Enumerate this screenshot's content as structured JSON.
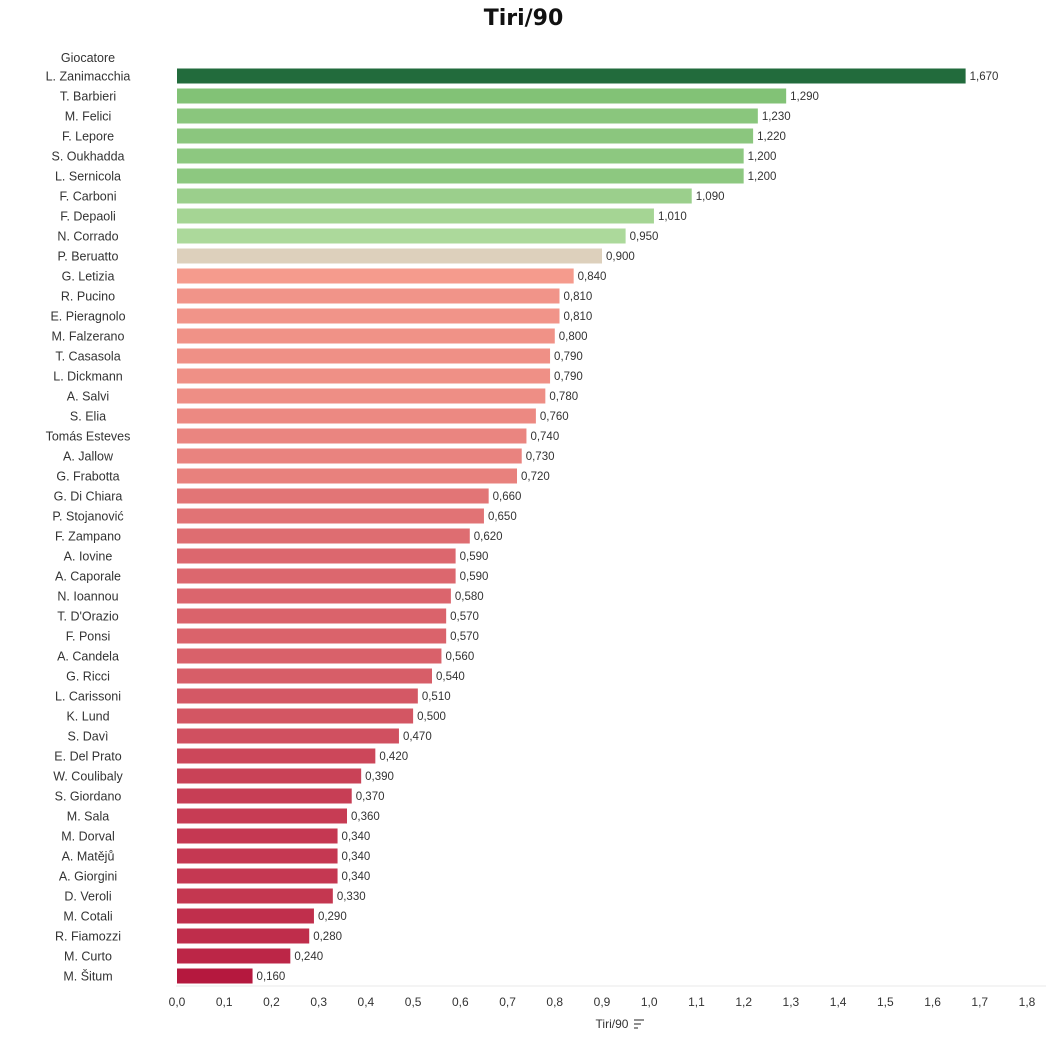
{
  "chart_data": {
    "type": "bar",
    "orientation": "horizontal",
    "title": "Tiri/90",
    "row_header": "Giocatore",
    "xlabel": "Tiri/90",
    "xlim": [
      0,
      1.8
    ],
    "x_ticks": [
      "0,0",
      "0,1",
      "0,2",
      "0,3",
      "0,4",
      "0,5",
      "0,6",
      "0,7",
      "0,8",
      "0,9",
      "1,0",
      "1,1",
      "1,2",
      "1,3",
      "1,4",
      "1,5",
      "1,6",
      "1,7",
      "1,8"
    ],
    "categories": [
      "L. Zanimacchia",
      "T. Barbieri",
      "M. Felici",
      "F. Lepore",
      "S. Oukhadda",
      "L. Sernicola",
      "F. Carboni",
      "F. Depaoli",
      "N. Corrado",
      "P. Beruatto",
      "G. Letizia",
      "R. Pucino",
      "E. Pieragnolo",
      "M. Falzerano",
      "T. Casasola",
      "L. Dickmann",
      "A. Salvi",
      "S. Elia",
      "Tomás Esteves",
      "A. Jallow",
      "G. Frabotta",
      "G. Di Chiara",
      "P. Stojanović",
      "F. Zampano",
      "A. Iovine",
      "A. Caporale",
      "N. Ioannou",
      "T. D'Orazio",
      "F. Ponsi",
      "A. Candela",
      "G. Ricci",
      "L. Carissoni",
      "K. Lund",
      "S. Davì",
      "E. Del Prato",
      "W. Coulibaly",
      "S. Giordano",
      "M. Sala",
      "M. Dorval",
      "A. Matějů",
      "A. Giorgini",
      "D. Veroli",
      "M. Cotali",
      "R. Fiamozzi",
      "M. Curto",
      "M. Šitum"
    ],
    "values": [
      1.67,
      1.29,
      1.23,
      1.22,
      1.2,
      1.2,
      1.09,
      1.01,
      0.95,
      0.9,
      0.84,
      0.81,
      0.81,
      0.8,
      0.79,
      0.79,
      0.78,
      0.76,
      0.74,
      0.73,
      0.72,
      0.66,
      0.65,
      0.62,
      0.59,
      0.59,
      0.58,
      0.57,
      0.57,
      0.56,
      0.54,
      0.51,
      0.5,
      0.47,
      0.42,
      0.39,
      0.37,
      0.36,
      0.34,
      0.34,
      0.34,
      0.33,
      0.29,
      0.28,
      0.24,
      0.16
    ],
    "value_labels": [
      "1,670",
      "1,290",
      "1,230",
      "1,220",
      "1,200",
      "1,200",
      "1,090",
      "1,010",
      "0,950",
      "0,900",
      "0,840",
      "0,810",
      "0,810",
      "0,800",
      "0,790",
      "0,790",
      "0,780",
      "0,760",
      "0,740",
      "0,730",
      "0,720",
      "0,660",
      "0,650",
      "0,620",
      "0,590",
      "0,590",
      "0,580",
      "0,570",
      "0,570",
      "0,560",
      "0,540",
      "0,510",
      "0,500",
      "0,470",
      "0,420",
      "0,390",
      "0,370",
      "0,360",
      "0,340",
      "0,340",
      "0,340",
      "0,330",
      "0,290",
      "0,280",
      "0,240",
      "0,160"
    ],
    "color_scale": {
      "type": "diverging",
      "low": "#b5183e",
      "mid": "#ddd0bc",
      "high": "#226b3c"
    },
    "grid": false,
    "sorted": "descending"
  }
}
